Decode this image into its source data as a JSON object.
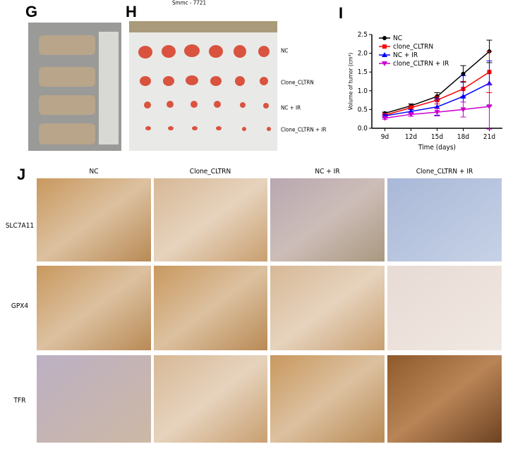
{
  "panel_labels": [
    "G",
    "H",
    "I",
    "J"
  ],
  "h_title": "Smmc - 7721",
  "h_row_labels": [
    "NC",
    "Clone_CLTRN",
    "NC + IR",
    "Clone_CLTRN + IR"
  ],
  "chart_data": {
    "type": "line",
    "xlabel": "Time (days)",
    "ylabel": "Volume of tumor (cm³)",
    "categories": [
      "9d",
      "12d",
      "15d",
      "18d",
      "21d"
    ],
    "ylim": [
      0,
      2.5
    ],
    "yticks": [
      {
        "value": 0,
        "label": "0.0"
      },
      0.5,
      {
        "value": 1,
        "label": "1.0"
      },
      1.5,
      {
        "value": 2,
        "label": "2.0"
      },
      2.5
    ],
    "legend": "upper left",
    "series": [
      {
        "name": "NC",
        "color": "#000000",
        "marker": "circle",
        "values": [
          0.4,
          0.6,
          0.85,
          1.45,
          2.05
        ],
        "errors": [
          0.03,
          0.05,
          0.1,
          0.22,
          0.3
        ]
      },
      {
        "name": "clone_CLTRN",
        "color": "#ff0000",
        "marker": "square",
        "values": [
          0.35,
          0.55,
          0.75,
          1.05,
          1.5
        ],
        "errors": [
          0.03,
          0.05,
          0.1,
          0.2,
          0.55
        ]
      },
      {
        "name": "NC + IR",
        "color": "#0000ff",
        "marker": "triangle",
        "values": [
          0.33,
          0.45,
          0.57,
          0.85,
          1.2
        ],
        "errors": [
          0.03,
          0.05,
          0.22,
          0.55,
          0.6
        ]
      },
      {
        "name": "clone_CLTRN + IR",
        "color": "#cc00cc",
        "marker": "triangle-down",
        "values": [
          0.27,
          0.37,
          0.43,
          0.5,
          0.58
        ],
        "errors": [
          0.03,
          0.05,
          0.1,
          0.2,
          0.6
        ]
      }
    ]
  },
  "j_columns": [
    "NC",
    "Clone_CLTRN",
    "NC + IR",
    "Clone_CLTRN + IR"
  ],
  "j_rows": [
    "SLC7A11",
    "GPX4",
    "TFR"
  ]
}
